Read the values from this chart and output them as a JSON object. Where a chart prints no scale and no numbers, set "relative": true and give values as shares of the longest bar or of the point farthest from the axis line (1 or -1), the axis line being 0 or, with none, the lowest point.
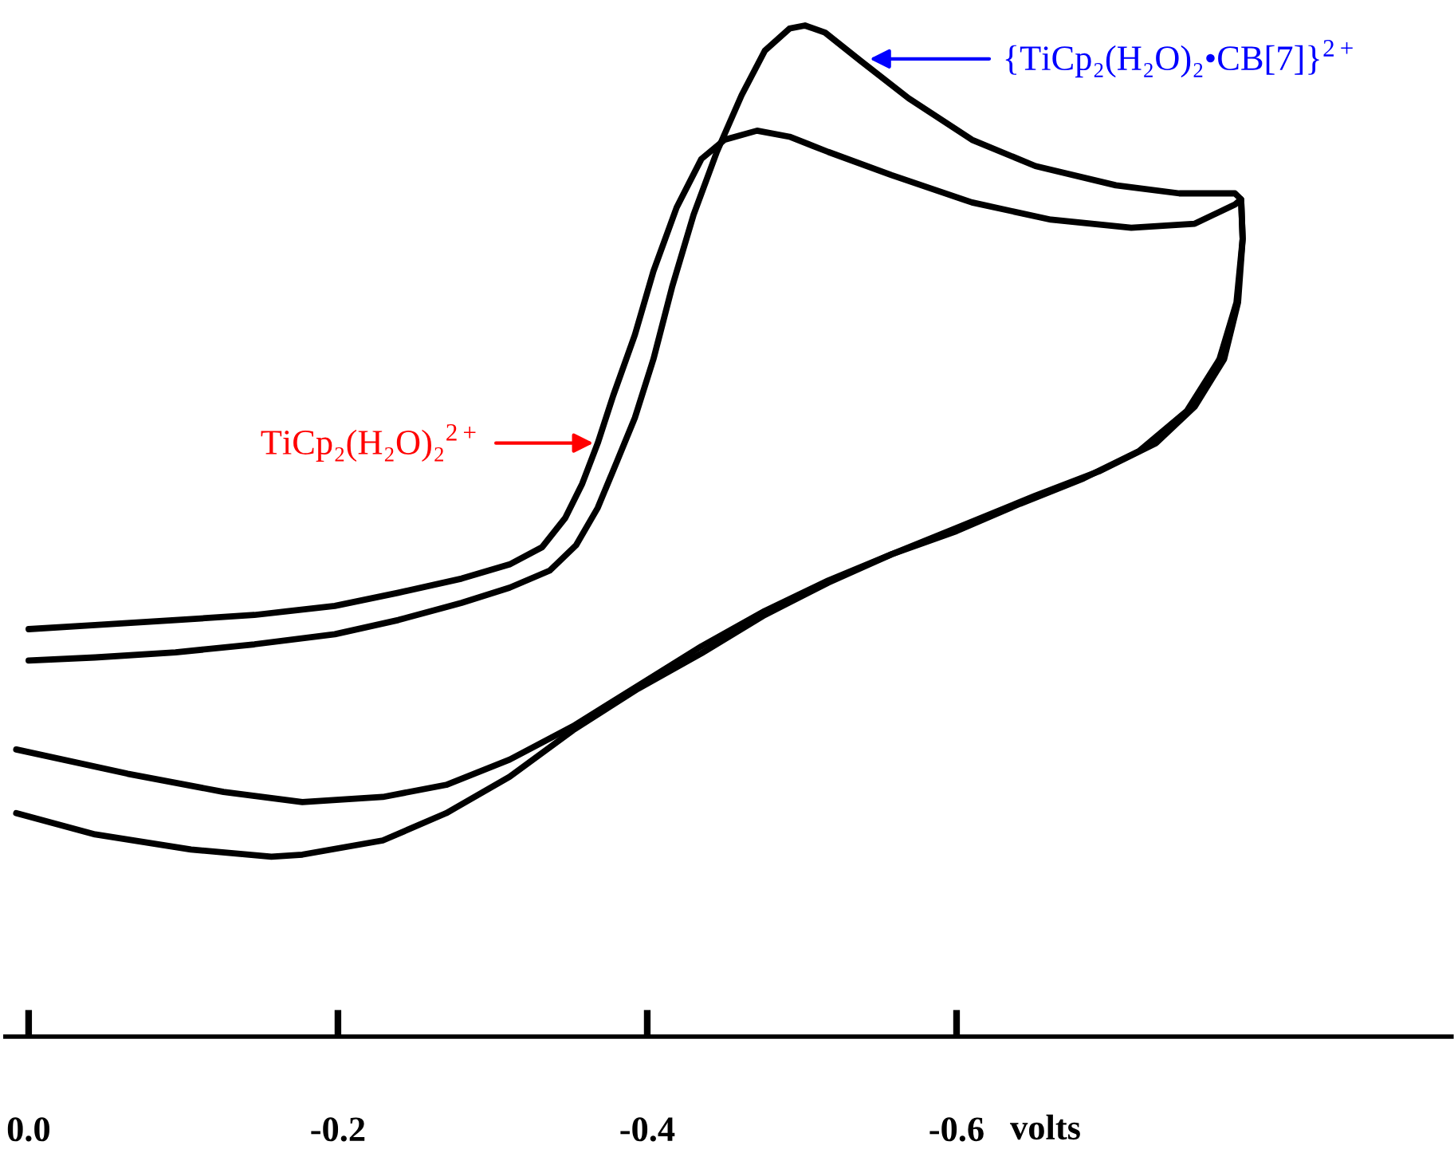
{
  "chart_data": {
    "type": "line",
    "relative": true,
    "xlabel": "volts",
    "xlim": [
      0.015,
      -0.92
    ],
    "xticks": [
      {
        "value": 0,
        "label": "0.0"
      },
      -0.2,
      -0.4,
      -0.6
    ],
    "grid": false,
    "series": [
      {
        "color": "#000000",
        "x": [
          0.0,
          -0.043,
          -0.095,
          -0.146,
          -0.198,
          -0.239,
          -0.28,
          -0.311,
          -0.332,
          -0.347,
          -0.358,
          -0.368,
          -0.378,
          -0.392,
          -0.404,
          -0.419,
          -0.435,
          -0.45,
          -0.471,
          -0.492,
          -0.517,
          -0.558,
          -0.61,
          -0.661,
          -0.713,
          -0.754,
          -0.78,
          -0.784,
          -0.785,
          -0.781,
          -0.77,
          -0.749,
          -0.718,
          -0.682,
          -0.641,
          -0.6,
          -0.558,
          -0.517,
          -0.476,
          -0.435,
          -0.394,
          -0.352,
          -0.311,
          -0.27,
          -0.229,
          -0.177,
          -0.126,
          -0.064,
          0.008
        ],
        "values": [
          0.403,
          0.407,
          0.412,
          0.417,
          0.426,
          0.439,
          0.453,
          0.467,
          0.484,
          0.513,
          0.547,
          0.587,
          0.634,
          0.694,
          0.757,
          0.82,
          0.868,
          0.887,
          0.896,
          0.89,
          0.875,
          0.852,
          0.825,
          0.808,
          0.8,
          0.804,
          0.823,
          0.828,
          0.789,
          0.726,
          0.67,
          0.619,
          0.579,
          0.552,
          0.527,
          0.5,
          0.477,
          0.451,
          0.421,
          0.386,
          0.347,
          0.307,
          0.274,
          0.249,
          0.237,
          0.232,
          0.242,
          0.26,
          0.284
        ]
      },
      {
        "color": "#000000",
        "x": [
          0.0,
          -0.043,
          -0.095,
          -0.146,
          -0.198,
          -0.239,
          -0.28,
          -0.311,
          -0.337,
          -0.354,
          -0.368,
          -0.381,
          -0.392,
          -0.404,
          -0.416,
          -0.43,
          -0.445,
          -0.461,
          -0.476,
          -0.492,
          -0.502,
          -0.515,
          -0.538,
          -0.569,
          -0.61,
          -0.651,
          -0.703,
          -0.744,
          -0.78,
          -0.784,
          -0.785,
          -0.782,
          -0.773,
          -0.754,
          -0.729,
          -0.692,
          -0.651,
          -0.6,
          -0.558,
          -0.517,
          -0.476,
          -0.435,
          -0.394,
          -0.352,
          -0.311,
          -0.27,
          -0.229,
          -0.177,
          -0.157,
          -0.105,
          -0.043,
          0.008
        ],
        "values": [
          0.372,
          0.375,
          0.38,
          0.388,
          0.398,
          0.412,
          0.429,
          0.444,
          0.461,
          0.486,
          0.523,
          0.571,
          0.612,
          0.67,
          0.741,
          0.813,
          0.875,
          0.931,
          0.975,
          0.997,
          1.0,
          0.993,
          0.965,
          0.928,
          0.887,
          0.861,
          0.842,
          0.834,
          0.834,
          0.828,
          0.789,
          0.726,
          0.67,
          0.623,
          0.587,
          0.559,
          0.535,
          0.503,
          0.477,
          0.449,
          0.417,
          0.379,
          0.344,
          0.303,
          0.257,
          0.221,
          0.194,
          0.18,
          0.178,
          0.185,
          0.2,
          0.221
        ]
      }
    ],
    "annotations": [
      {
        "text": "TiCp₂(H₂O)₂$^{2+}$",
        "x": -0.368,
        "y": 0.587
      },
      {
        "text": "{TiCp₂(H₂O)₂•CB[7]}$^{2+}$",
        "x": -0.541,
        "y": 0.967
      }
    ]
  }
}
